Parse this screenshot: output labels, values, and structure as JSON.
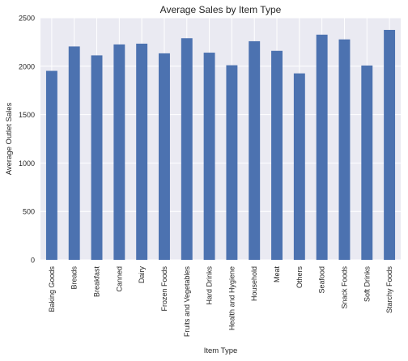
{
  "chart_data": {
    "type": "bar",
    "title": "Average Sales by Item Type",
    "xlabel": "Item Type",
    "ylabel": "Average Outlet Sales",
    "categories": [
      "Baking Goods",
      "Breads",
      "Breakfast",
      "Canned",
      "Dairy",
      "Frozen Foods",
      "Fruits and Vegetables",
      "Hard Drinks",
      "Health and Hygiene",
      "Household",
      "Meat",
      "Others",
      "Seafood",
      "Snack Foods",
      "Soft Drinks",
      "Starchy Foods"
    ],
    "values": [
      1952,
      2204,
      2112,
      2225,
      2233,
      2133,
      2289,
      2140,
      2010,
      2258,
      2159,
      1926,
      2326,
      2277,
      2007,
      2375
    ],
    "ylim": [
      0,
      2500
    ],
    "yticks": [
      0,
      500,
      1000,
      1500,
      2000,
      2500
    ],
    "grid": true,
    "colors": {
      "bar": "#4c72b0",
      "plot_bg": "#eaeaf2",
      "grid": "#ffffff",
      "text": "#262626"
    }
  }
}
